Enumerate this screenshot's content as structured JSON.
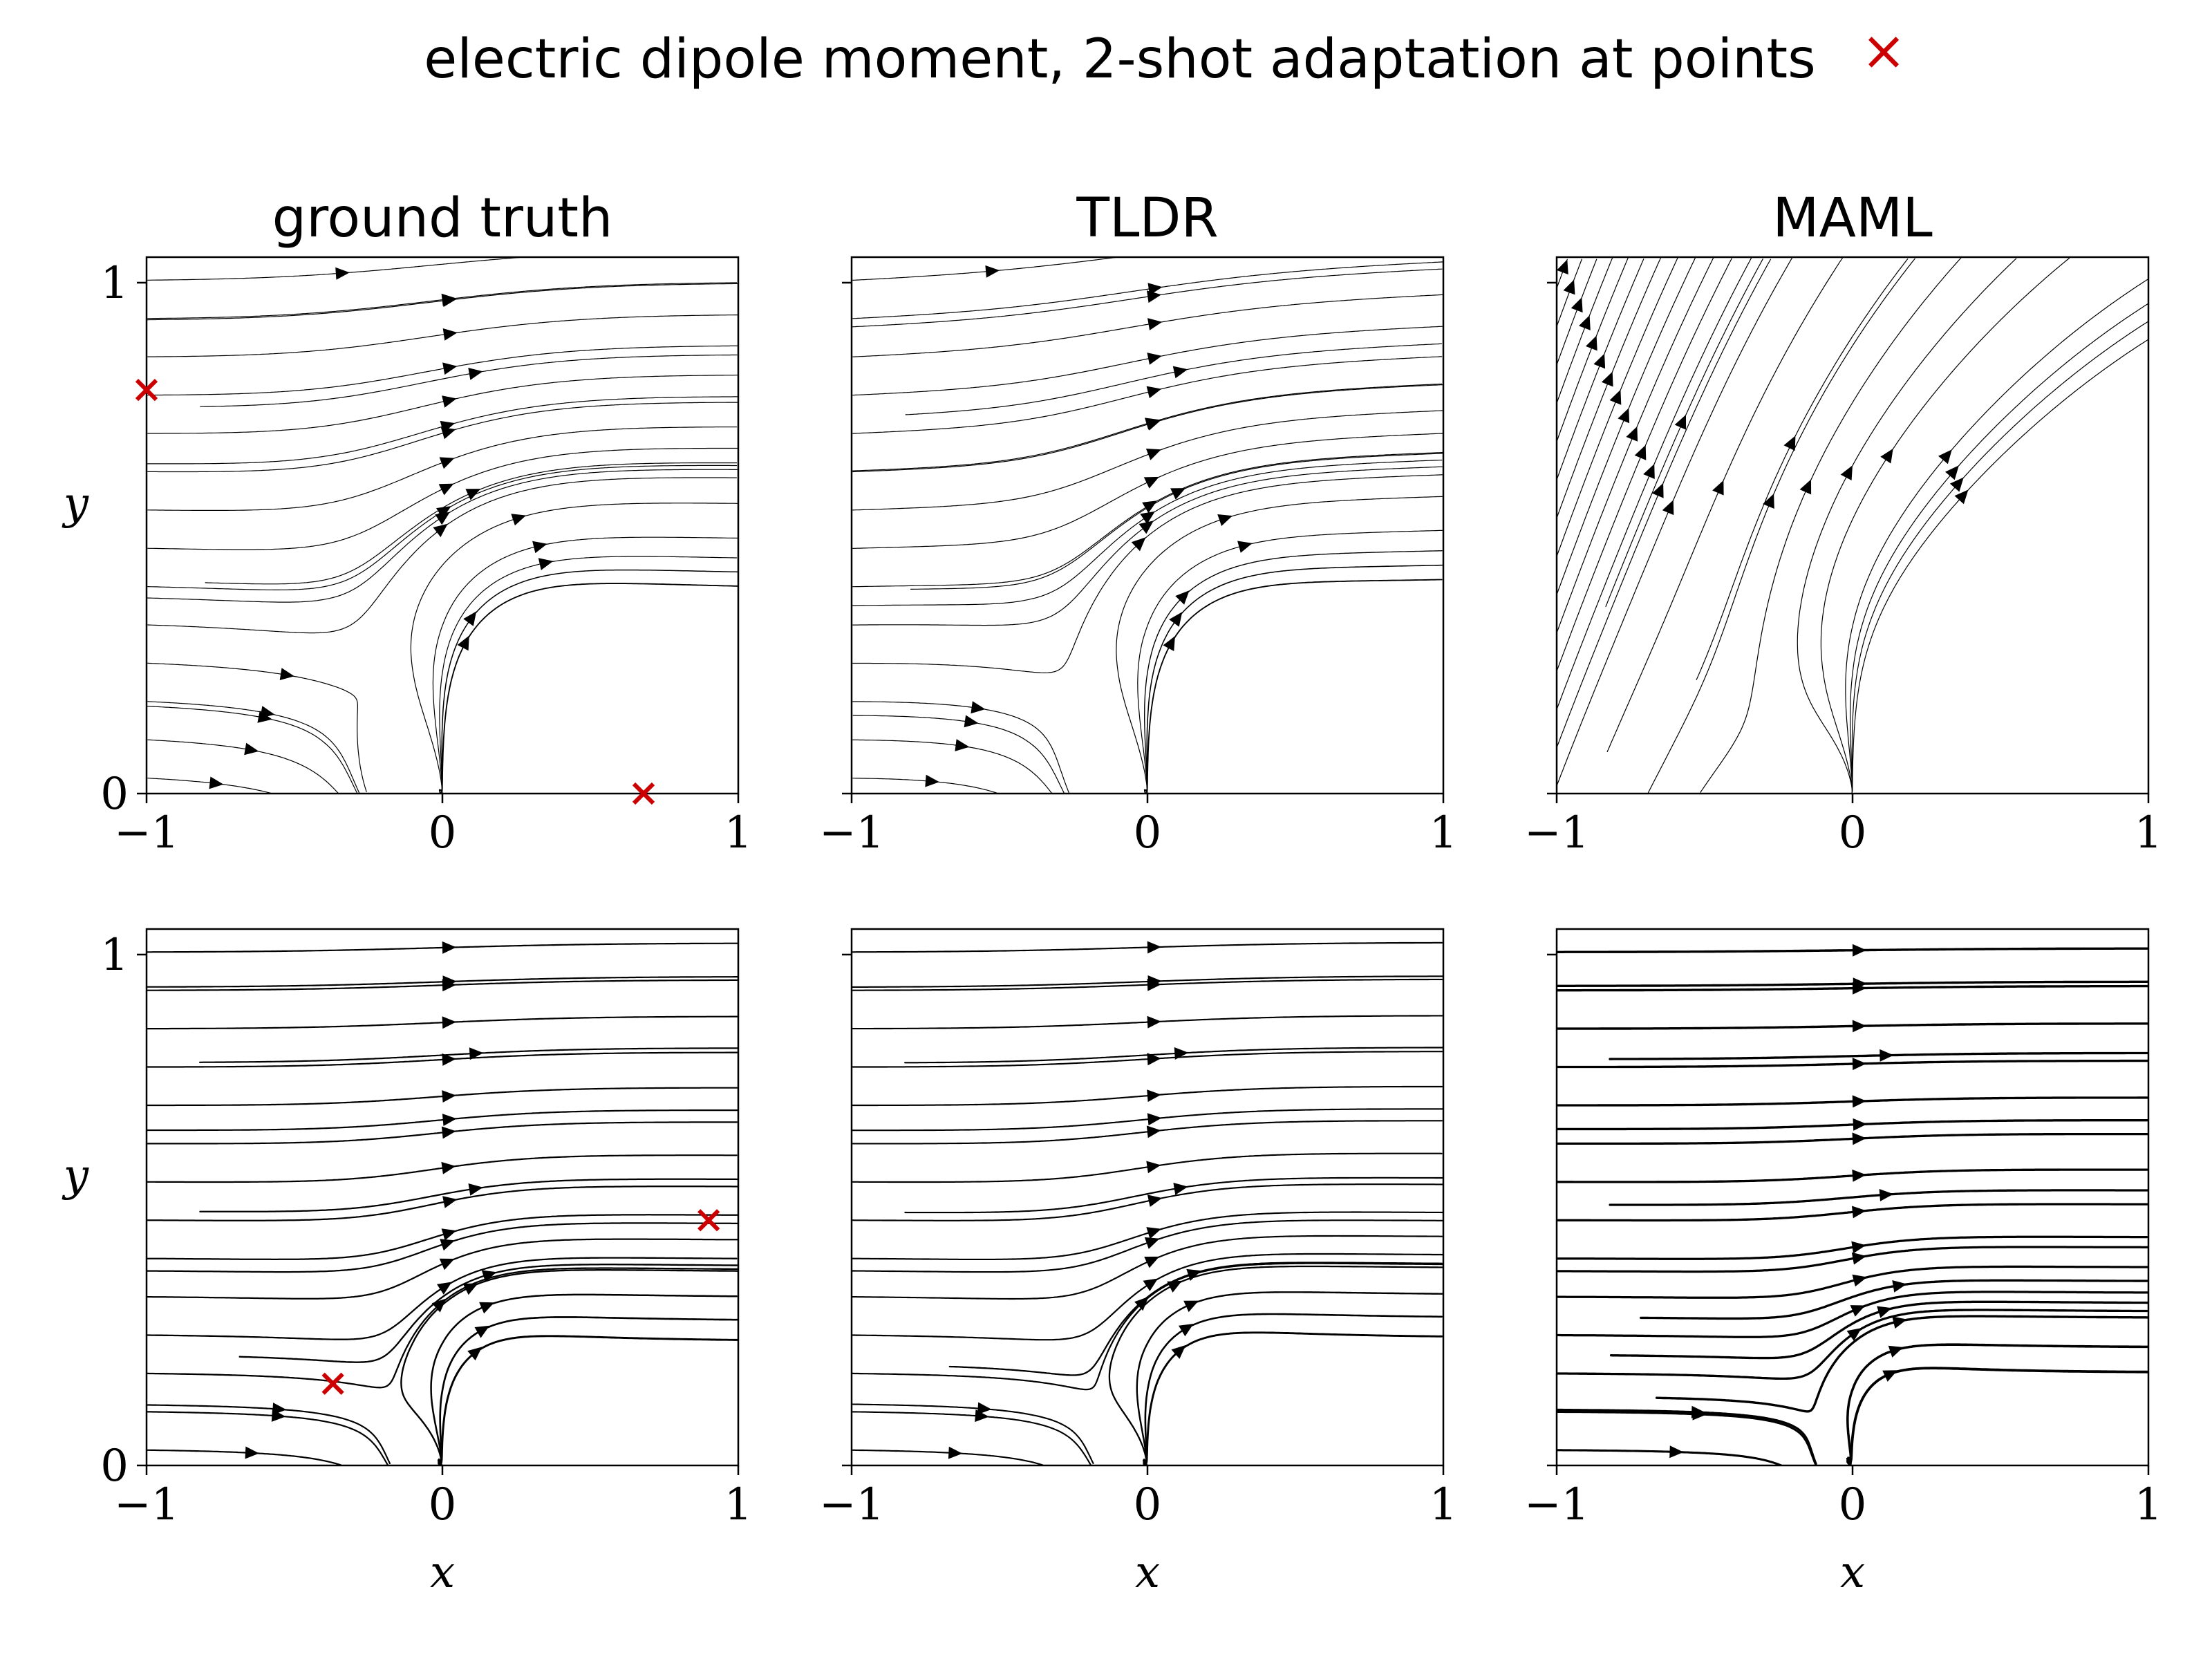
{
  "figure": {
    "title": "electric dipole moment, 2-shot adaptation at points",
    "title_marker": "×",
    "marker_color": "#cc0000",
    "line_color": "#000000"
  },
  "columns": [
    "ground truth",
    "TLDR",
    "MAML"
  ],
  "chart_data": {
    "type": "streamplot",
    "layout": {
      "rows": 2,
      "cols": 3
    },
    "xlabel": "x",
    "ylabel": "y",
    "xlim": [
      -1,
      1
    ],
    "ylim": [
      0,
      1.05
    ],
    "xticks": [
      -1,
      0,
      1
    ],
    "yticks": [
      0,
      1
    ],
    "grid": false,
    "description_rows": [
      {
        "row": 0,
        "adaptation_points": [
          {
            "x": -1.0,
            "y": 0.79
          },
          {
            "x": 0.68,
            "y": 0.0
          }
        ],
        "dipole_center": {
          "x": 0.0,
          "y": 0.0
        }
      },
      {
        "row": 1,
        "adaptation_points": [
          {
            "x": -0.37,
            "y": 0.16
          },
          {
            "x": 0.9,
            "y": 0.48
          }
        ],
        "dipole_center": {
          "x": 0.0,
          "y": 0.0
        }
      }
    ]
  }
}
